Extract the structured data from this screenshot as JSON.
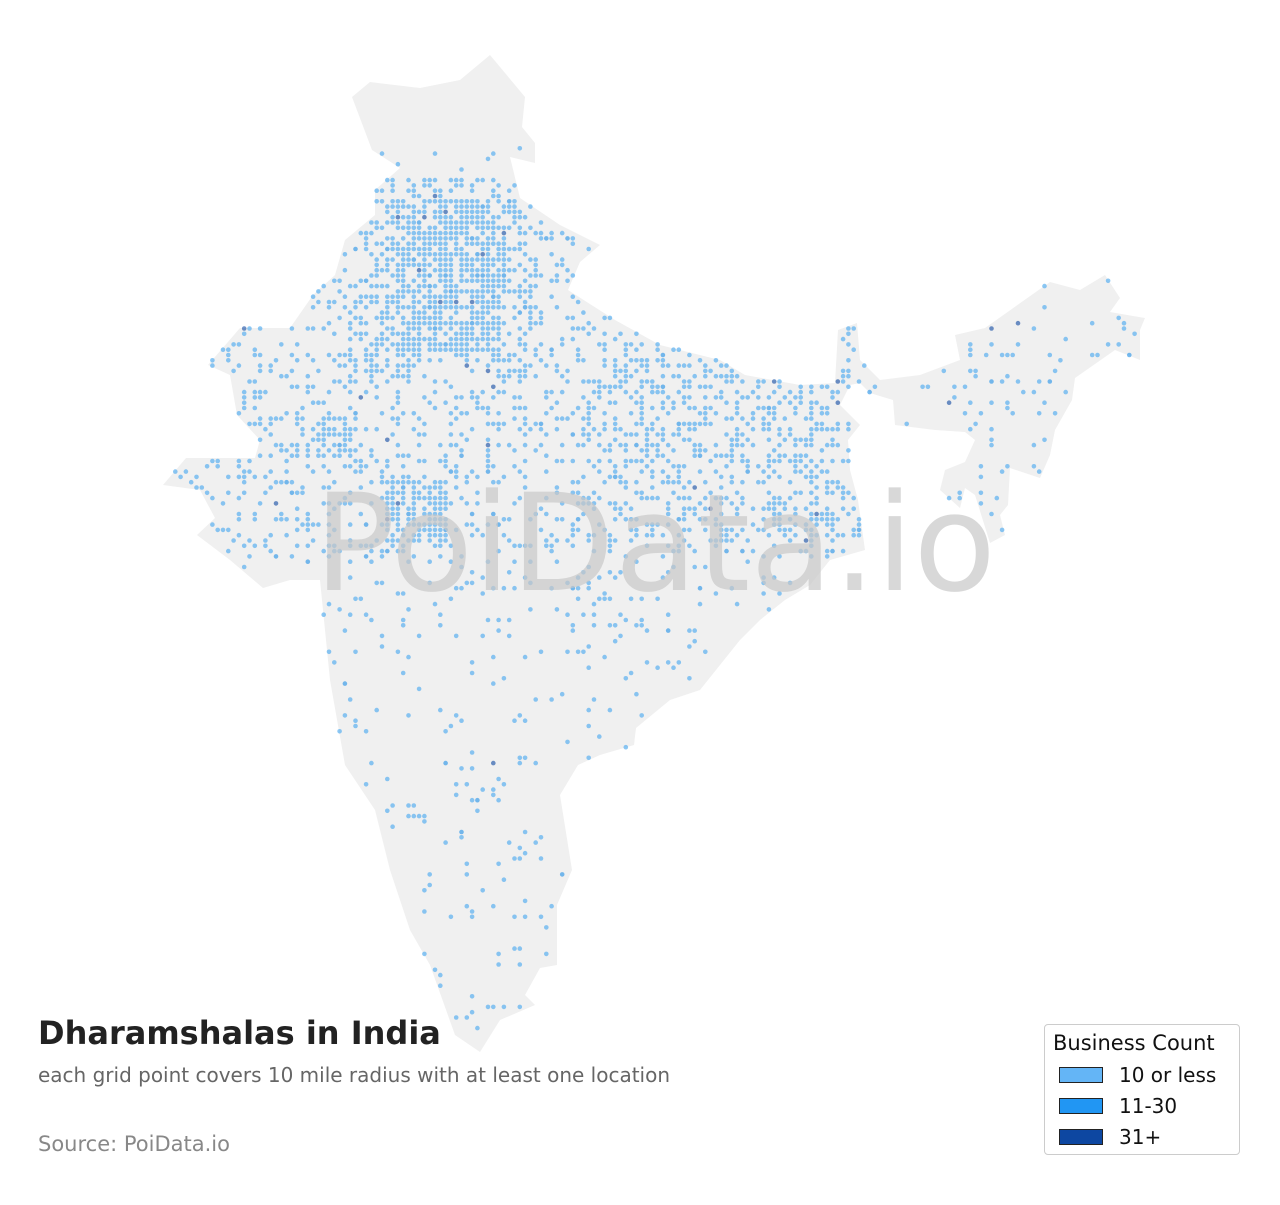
{
  "title": "Dharamshalas in India",
  "subtitle": "each grid point covers 10 mile radius with at least one location",
  "source": "Source: PoiData.io",
  "watermark": "PoiData.io",
  "colors": {
    "land": "#f0f0f0",
    "low": "#5aaff0",
    "mid": "#1e8fe8",
    "high": "#0d47a1",
    "watermark": "#c8c8c8"
  },
  "legend": {
    "title": "Business Count",
    "items": [
      {
        "label": "10 or less",
        "color": "#64b5f6"
      },
      {
        "label": "11-30",
        "color": "#2196f3"
      },
      {
        "label": "31+",
        "color": "#0d47a1"
      }
    ]
  }
}
